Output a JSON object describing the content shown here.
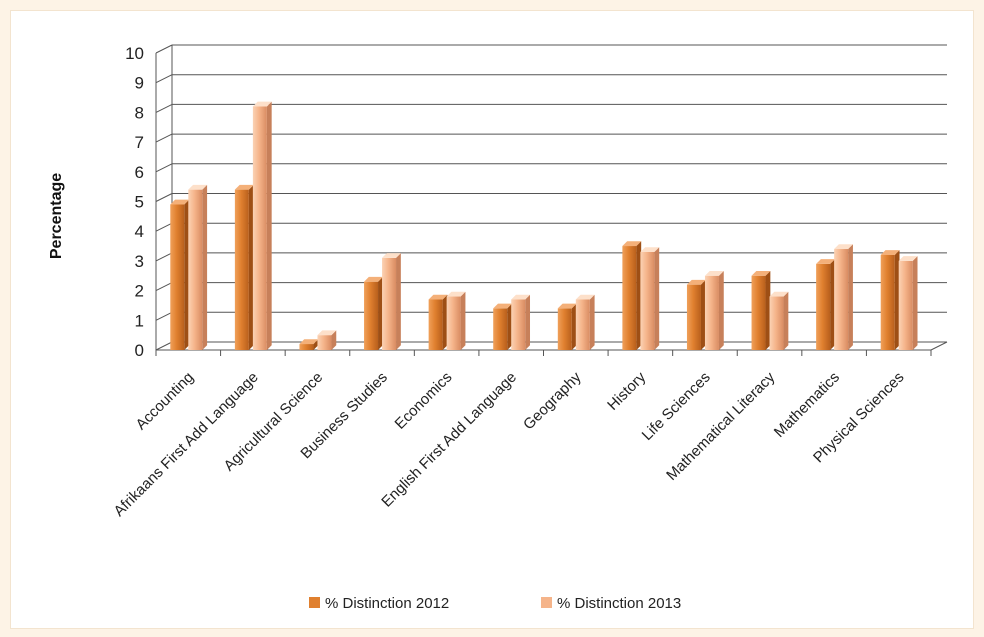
{
  "chart_data": {
    "type": "bar",
    "title": "",
    "xlabel": "",
    "ylabel": "Percentage",
    "ylim": [
      0,
      10
    ],
    "yticks": [
      0,
      1,
      2,
      3,
      4,
      5,
      6,
      7,
      8,
      9,
      10
    ],
    "grid": true,
    "legend_position": "bottom",
    "categories": [
      "Accounting",
      "Afrikaans First Add Language",
      "Agricultural Science",
      "Business Studies",
      "Economics",
      "English First Add Language",
      "Geography",
      "History",
      "Life Sciences",
      "Mathematical Literacy",
      "Mathematics",
      "Physical Sciences"
    ],
    "series": [
      {
        "name": "% Distinction 2012",
        "color": "#e0802f",
        "values": [
          4.9,
          5.4,
          0.2,
          2.3,
          1.7,
          1.4,
          1.4,
          3.5,
          2.2,
          2.5,
          2.9,
          3.2
        ]
      },
      {
        "name": "% Distinction 2013",
        "color": "#f5b48a",
        "values": [
          5.4,
          8.2,
          0.5,
          3.1,
          1.8,
          1.7,
          1.7,
          3.3,
          2.5,
          1.8,
          3.4,
          3.0
        ]
      }
    ]
  }
}
